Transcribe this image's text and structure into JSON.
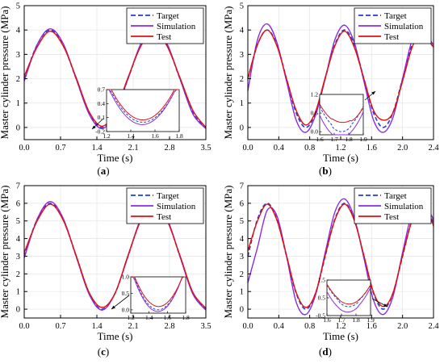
{
  "figure": {
    "legend_labels": [
      "Target",
      "Simulation",
      "Test"
    ],
    "colors": {
      "Target": "#1f3fd6",
      "Simulation": "#8a2be2",
      "Test": "#e01010"
    }
  },
  "chart_data": [
    {
      "type": "line",
      "panel": "(a)",
      "xlabel": "Time (s)",
      "ylabel": "Master cylinder pressure (MPa)",
      "xlim": [
        0,
        3.5
      ],
      "ylim": [
        -0.5,
        5
      ],
      "xticks": [
        "0.0",
        "0.7",
        "1.4",
        "2.1",
        "2.8",
        "3.5"
      ],
      "yticks": [
        "0",
        "1",
        "2",
        "3",
        "4",
        "5"
      ],
      "legend": "top-right",
      "series": [
        {
          "name": "Target",
          "x": [
            0.0,
            0.25,
            0.5,
            0.75,
            1.0,
            1.25,
            1.5,
            1.75,
            2.0,
            2.25,
            2.5,
            2.75,
            3.0,
            3.25,
            3.5
          ],
          "values": [
            2.0,
            3.4,
            4.0,
            3.4,
            2.0,
            0.6,
            0.0,
            0.6,
            2.0,
            3.4,
            4.0,
            3.4,
            2.0,
            0.6,
            0.0
          ]
        },
        {
          "name": "Simulation",
          "x": [
            0.0,
            0.25,
            0.5,
            0.75,
            1.0,
            1.25,
            1.5,
            1.75,
            2.0,
            2.25,
            2.5,
            2.75,
            3.0,
            3.25,
            3.5
          ],
          "values": [
            1.9,
            3.4,
            4.05,
            3.45,
            2.0,
            0.55,
            -0.05,
            0.6,
            2.0,
            3.45,
            4.05,
            3.45,
            2.0,
            0.55,
            -0.05
          ]
        },
        {
          "name": "Test",
          "x": [
            0.0,
            0.25,
            0.5,
            0.75,
            1.0,
            1.25,
            1.5,
            1.75,
            2.0,
            2.25,
            2.5,
            2.75,
            3.0,
            3.25,
            3.5
          ],
          "values": [
            2.1,
            3.3,
            3.95,
            3.35,
            2.05,
            0.65,
            0.05,
            0.65,
            2.05,
            3.35,
            3.95,
            3.35,
            2.05,
            0.7,
            0.0
          ]
        }
      ],
      "inset": {
        "xlim": [
          1.2,
          1.8
        ],
        "ylim": [
          -0.2,
          0.7
        ],
        "xticks": [
          "1.2",
          "1.4",
          "1.6",
          "1.8"
        ],
        "yticks": [
          "-0.2",
          "0.1",
          "0.4",
          "0.7"
        ]
      }
    },
    {
      "type": "line",
      "panel": "(b)",
      "xlabel": "Time (s)",
      "ylabel": "Master cylinder pressure (MPa)",
      "xlim": [
        0,
        2.4
      ],
      "ylim": [
        -0.5,
        5
      ],
      "xticks": [
        "0.0",
        "0.4",
        "0.8",
        "1.2",
        "1.6",
        "2.0",
        "2.4"
      ],
      "yticks": [
        "0",
        "1",
        "2",
        "3",
        "4",
        "5"
      ],
      "legend": "top-right",
      "series": [
        {
          "name": "Target",
          "x": [
            0.0,
            0.125,
            0.25,
            0.375,
            0.5,
            0.625,
            0.75,
            0.875,
            1.0,
            1.125,
            1.25,
            1.375,
            1.5,
            1.625,
            1.75,
            1.875,
            2.0,
            2.125,
            2.25,
            2.375,
            2.4
          ],
          "values": [
            2.0,
            3.4,
            4.0,
            3.4,
            2.0,
            0.6,
            0.0,
            0.6,
            2.0,
            3.4,
            4.0,
            3.4,
            2.0,
            0.6,
            0.0,
            0.6,
            2.0,
            3.4,
            4.0,
            3.4,
            3.3
          ]
        },
        {
          "name": "Simulation",
          "x": [
            0.0,
            0.125,
            0.25,
            0.375,
            0.5,
            0.625,
            0.75,
            0.875,
            1.0,
            1.125,
            1.25,
            1.375,
            1.5,
            1.625,
            1.75,
            1.875,
            2.0,
            2.125,
            2.25,
            2.375,
            2.4
          ],
          "values": [
            1.5,
            3.6,
            4.25,
            3.5,
            1.9,
            0.3,
            -0.2,
            0.5,
            2.0,
            3.6,
            4.2,
            3.5,
            1.9,
            0.3,
            -0.2,
            0.4,
            2.0,
            3.6,
            4.15,
            3.5,
            3.4
          ]
        },
        {
          "name": "Test",
          "x": [
            0.0,
            0.125,
            0.25,
            0.375,
            0.5,
            0.625,
            0.75,
            0.875,
            1.0,
            1.125,
            1.25,
            1.375,
            1.5,
            1.625,
            1.75,
            1.875,
            2.0,
            2.125,
            2.25,
            2.375,
            2.4
          ],
          "values": [
            2.0,
            3.4,
            4.0,
            3.35,
            2.0,
            0.7,
            0.1,
            0.65,
            2.05,
            3.35,
            3.95,
            3.3,
            2.0,
            0.7,
            0.3,
            0.6,
            1.9,
            3.3,
            3.95,
            3.4,
            3.3
          ]
        }
      ],
      "inset": {
        "xlim": [
          1.6,
          1.9
        ],
        "ylim": [
          -0.1,
          1.2
        ],
        "xticks": [
          "1.6",
          "1.7",
          "1.8",
          "1.9"
        ],
        "yticks": [
          "0.0",
          "0.6",
          "1.2"
        ]
      }
    },
    {
      "type": "line",
      "panel": "(c)",
      "xlabel": "Time (s)",
      "ylabel": "Master cylinder pressure (MPa)",
      "xlim": [
        0,
        3.5
      ],
      "ylim": [
        -0.5,
        7
      ],
      "xticks": [
        "0.0",
        "0.7",
        "1.4",
        "2.1",
        "2.8",
        "3.5"
      ],
      "yticks": [
        "0",
        "1",
        "2",
        "3",
        "4",
        "5",
        "6",
        "7"
      ],
      "legend": "top-right",
      "series": [
        {
          "name": "Target",
          "x": [
            0.0,
            0.25,
            0.5,
            0.75,
            1.0,
            1.25,
            1.5,
            1.75,
            2.0,
            2.25,
            2.5,
            2.75,
            3.0,
            3.25,
            3.5
          ],
          "values": [
            3.0,
            5.1,
            6.0,
            5.1,
            3.0,
            0.9,
            0.0,
            0.9,
            3.0,
            5.1,
            6.0,
            5.1,
            3.0,
            0.9,
            0.0
          ]
        },
        {
          "name": "Simulation",
          "x": [
            0.0,
            0.25,
            0.5,
            0.75,
            1.0,
            1.25,
            1.5,
            1.75,
            2.0,
            2.25,
            2.5,
            2.75,
            3.0,
            3.25,
            3.5
          ],
          "values": [
            2.9,
            5.1,
            6.1,
            5.15,
            3.0,
            0.85,
            -0.05,
            0.9,
            3.0,
            5.15,
            6.1,
            5.15,
            3.0,
            0.85,
            -0.05
          ]
        },
        {
          "name": "Test",
          "x": [
            0.0,
            0.25,
            0.5,
            0.75,
            1.0,
            1.25,
            1.5,
            1.75,
            2.0,
            2.25,
            2.5,
            2.75,
            3.0,
            3.25,
            3.5
          ],
          "values": [
            3.2,
            5.0,
            5.95,
            5.05,
            3.05,
            0.95,
            0.1,
            0.9,
            3.05,
            5.05,
            5.95,
            5.05,
            3.05,
            0.95,
            0.05
          ]
        }
      ],
      "inset": {
        "xlim": [
          1.2,
          1.8
        ],
        "ylim": [
          -0.1,
          1.0
        ],
        "xticks": [
          "1.2",
          "1.4",
          "1.6",
          "1.8"
        ],
        "yticks": [
          "0.0",
          "0.5",
          "1.0"
        ]
      }
    },
    {
      "type": "line",
      "panel": "(d)",
      "xlabel": "Time (s)",
      "ylabel": "Master cylinder pressure (MPa)",
      "xlim": [
        0,
        2.4
      ],
      "ylim": [
        -0.5,
        7
      ],
      "xticks": [
        "0.0",
        "0.4",
        "0.8",
        "1.2",
        "1.6",
        "2.0",
        "2.4"
      ],
      "yticks": [
        "0",
        "1",
        "2",
        "3",
        "4",
        "5",
        "6",
        "7"
      ],
      "legend": "top-right",
      "series": [
        {
          "name": "Target",
          "x": [
            0.0,
            0.125,
            0.25,
            0.375,
            0.5,
            0.625,
            0.75,
            0.875,
            1.0,
            1.125,
            1.25,
            1.375,
            1.5,
            1.625,
            1.75,
            1.875,
            2.0,
            2.125,
            2.25,
            2.375,
            2.4
          ],
          "values": [
            3.0,
            5.1,
            6.0,
            5.1,
            3.0,
            0.9,
            0.0,
            0.9,
            3.0,
            5.1,
            6.0,
            5.1,
            3.0,
            0.9,
            0.0,
            0.9,
            3.0,
            5.1,
            6.0,
            5.1,
            4.8
          ]
        },
        {
          "name": "Simulation",
          "x": [
            0.0,
            0.125,
            0.25,
            0.375,
            0.5,
            0.625,
            0.75,
            0.875,
            1.0,
            1.125,
            1.25,
            1.375,
            1.5,
            1.625,
            1.75,
            1.875,
            2.0,
            2.125,
            2.25,
            2.375,
            2.4
          ],
          "values": [
            1.5,
            3.5,
            5.6,
            5.3,
            3.0,
            0.4,
            -0.3,
            0.8,
            3.2,
            5.5,
            6.25,
            5.2,
            2.9,
            0.5,
            -0.3,
            0.7,
            3.2,
            5.5,
            6.25,
            5.3,
            5.0
          ]
        },
        {
          "name": "Test",
          "x": [
            0.0,
            0.125,
            0.25,
            0.375,
            0.5,
            0.625,
            0.75,
            0.875,
            1.0,
            1.125,
            1.25,
            1.375,
            1.5,
            1.625,
            1.75,
            1.875,
            2.0,
            2.125,
            2.25,
            2.375,
            2.4
          ],
          "values": [
            3.3,
            5.0,
            5.95,
            5.05,
            3.05,
            0.95,
            0.1,
            0.9,
            3.05,
            5.05,
            5.95,
            5.05,
            3.05,
            0.95,
            0.15,
            0.9,
            3.05,
            5.05,
            5.95,
            5.0,
            4.7
          ]
        }
      ],
      "inset": {
        "xlim": [
          1.6,
          1.9
        ],
        "ylim": [
          -0.5,
          1.5
        ],
        "xticks": [
          "1.6",
          "1.7",
          "1.8",
          "1.9"
        ],
        "yticks": [
          "-0.5",
          "0.5",
          "1.5"
        ]
      }
    }
  ]
}
